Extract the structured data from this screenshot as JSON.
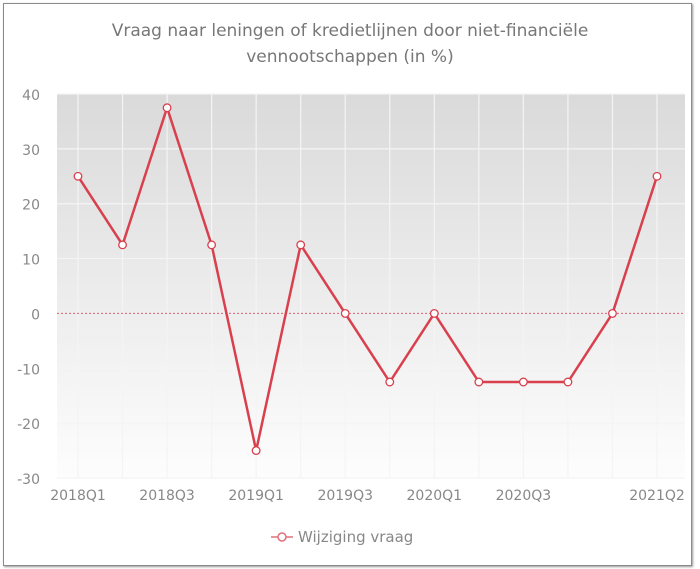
{
  "chart_data": {
    "type": "line",
    "title": "Vraag naar leningen of kredietlijnen door niet-financiële vennootschappen (in %)",
    "title_lines": [
      "Vraag naar leningen of kredietlijnen door niet-financiële",
      "vennootschappen (in %)"
    ],
    "x": [
      "2018Q1",
      "2018Q2",
      "2018Q3",
      "2018Q4",
      "2019Q1",
      "2019Q2",
      "2019Q3",
      "2019Q4",
      "2020Q1",
      "2020Q2",
      "2020Q3",
      "2020Q4",
      "2021Q1",
      "2021Q2"
    ],
    "x_tick_labels": [
      "2018Q1",
      "2018Q3",
      "2019Q1",
      "2019Q3",
      "2020Q1",
      "2020Q3",
      "2021Q2"
    ],
    "series": [
      {
        "name": "Wijziging vraag",
        "values": [
          25,
          12.5,
          37.5,
          12.5,
          -25,
          12.5,
          0,
          -12.5,
          0,
          -12.5,
          -12.5,
          -12.5,
          0,
          25
        ],
        "color": "#d9404e"
      }
    ],
    "ylim": [
      -30,
      40
    ],
    "y_ticks": [
      40,
      30,
      20,
      10,
      0,
      -10,
      -20,
      -30
    ],
    "xlabel": "",
    "ylabel": "",
    "grid": true,
    "legend_position": "bottom",
    "zero_line_color": "#e06070"
  }
}
